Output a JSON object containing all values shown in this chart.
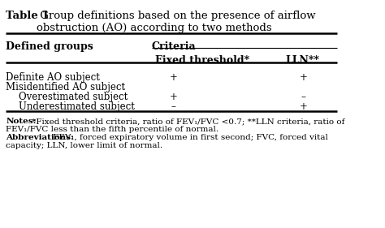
{
  "title_bold": "Table 1",
  "title_rest": " Group definitions based on the presence of airflow\nobstruction (AO) according to two methods",
  "col_header1": "Defined groups",
  "col_header2": "Criteria",
  "col_subheader1": "Fixed threshold*",
  "col_subheader2": "LLN**",
  "rows": [
    {
      "label": "Definite AO subject",
      "indent": false,
      "fixed": "+",
      "lln": "+"
    },
    {
      "label": "Misidentified AO subject",
      "indent": false,
      "fixed": "",
      "lln": ""
    },
    {
      "label": "Overestimated subject",
      "indent": true,
      "fixed": "+",
      "lln": "–"
    },
    {
      "label": "Underestimated subject",
      "indent": true,
      "fixed": "–",
      "lln": "+"
    }
  ],
  "notes_bold": "Notes:",
  "notes_rest": " *Fixed threshold criteria, ratio of FEV₁/FVC <0.7; **LLN criteria, ratio of\nFEV₁/FVC less than the fifth percentile of normal.",
  "abbrev_bold": "Abbreviations:",
  "abbrev_rest": " FEV₁, forced expiratory volume in first second; FVC, forced vital\ncapacity; LLN, lower limit of normal.",
  "bg_color": "#ffffff",
  "text_color": "#000000",
  "line_color": "#000000",
  "font_size_title": 9.5,
  "font_size_header": 9.0,
  "font_size_body": 8.5,
  "font_size_notes": 7.5
}
